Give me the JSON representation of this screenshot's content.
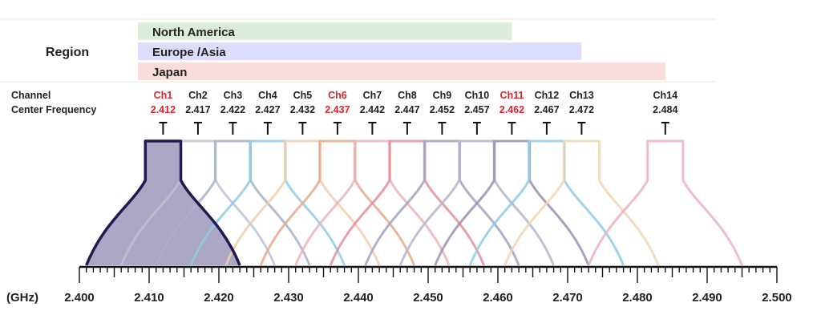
{
  "region_header": "Region",
  "regions": [
    {
      "name": "North America",
      "end_ghz": 2.462,
      "color": "#dbeedd"
    },
    {
      "name": "Europe /Asia",
      "end_ghz": 2.472,
      "color": "#dcdcfb"
    },
    {
      "name": "Japan",
      "end_ghz": 2.484,
      "color": "#fbdcdc"
    }
  ],
  "labels": {
    "channel": "Channel",
    "center_frequency": "Center Frequency",
    "unit": "(GHz)"
  },
  "highlight_color": "#d6262e",
  "text_color": "#222222",
  "channels": [
    {
      "name": "Ch1",
      "freq": 2.412,
      "freq_label": "2.412",
      "highlight": true,
      "color": "#1f1a4f",
      "filled": true,
      "fill": "#aca7c4"
    },
    {
      "name": "Ch2",
      "freq": 2.417,
      "freq_label": "2.417",
      "highlight": false,
      "color": "#b9c4d6"
    },
    {
      "name": "Ch3",
      "freq": 2.422,
      "freq_label": "2.422",
      "highlight": false,
      "color": "#a7b2c8"
    },
    {
      "name": "Ch4",
      "freq": 2.427,
      "freq_label": "2.427",
      "highlight": false,
      "color": "#8fcbe6"
    },
    {
      "name": "Ch5",
      "freq": 2.432,
      "freq_label": "2.432",
      "highlight": false,
      "color": "#f1cfae"
    },
    {
      "name": "Ch6",
      "freq": 2.437,
      "freq_label": "2.437",
      "highlight": true,
      "color": "#e8a98a"
    },
    {
      "name": "Ch7",
      "freq": 2.442,
      "freq_label": "2.442",
      "highlight": false,
      "color": "#efb3bd"
    },
    {
      "name": "Ch8",
      "freq": 2.447,
      "freq_label": "2.447",
      "highlight": false,
      "color": "#e58e9a"
    },
    {
      "name": "Ch9",
      "freq": 2.452,
      "freq_label": "2.452",
      "highlight": false,
      "color": "#a5a2c0"
    },
    {
      "name": "Ch10",
      "freq": 2.457,
      "freq_label": "2.457",
      "highlight": false,
      "color": "#b2b6cf"
    },
    {
      "name": "Ch11",
      "freq": 2.462,
      "freq_label": "2.462",
      "highlight": true,
      "color": "#9990b2"
    },
    {
      "name": "Ch12",
      "freq": 2.467,
      "freq_label": "2.467",
      "highlight": false,
      "color": "#8fcbe6"
    },
    {
      "name": "Ch13",
      "freq": 2.472,
      "freq_label": "2.472",
      "highlight": false,
      "color": "#f1d5b2"
    },
    {
      "name": "Ch14",
      "freq": 2.484,
      "freq_label": "2.484",
      "highlight": false,
      "color": "#eeb0bb"
    }
  ],
  "axis": {
    "min": 2.4,
    "max": 2.5,
    "major_labels": [
      "2.400",
      "2.410",
      "2.420",
      "2.430",
      "2.440",
      "2.450",
      "2.460",
      "2.470",
      "2.480",
      "2.490",
      "2.500"
    ],
    "minor_step": 0.001
  },
  "channel_width_ghz": 0.022
}
